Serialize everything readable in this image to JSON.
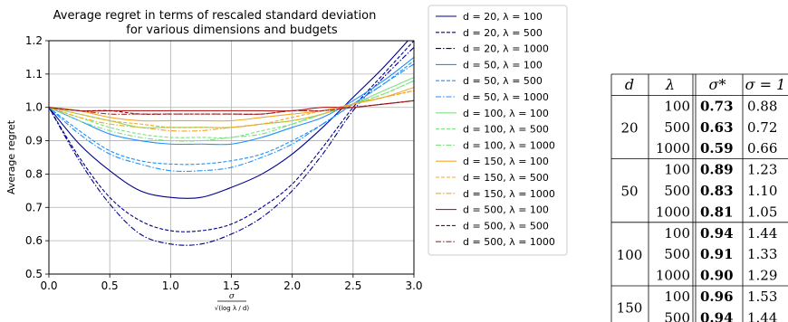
{
  "chart_data": {
    "type": "line",
    "title": "Average regret in terms of rescaled standard deviation",
    "subtitle": "for various dimensions and budgets",
    "ylabel": "Average regret",
    "xlabel_num": "σ",
    "xlabel_den": "√(log λ / d)",
    "xlim": [
      0,
      3
    ],
    "ylim": [
      0.5,
      1.2
    ],
    "xticks": [
      "0.0",
      "0.5",
      "1.0",
      "1.5",
      "2.0",
      "2.5",
      "3.0"
    ],
    "yticks": [
      "0.5",
      "0.6",
      "0.7",
      "0.8",
      "0.9",
      "1.0",
      "1.1",
      "1.2"
    ],
    "grid": true,
    "legend_position": "outside-right",
    "x": [
      0,
      0.25,
      0.5,
      0.75,
      1.0,
      1.25,
      1.5,
      1.75,
      2.0,
      2.25,
      2.5,
      2.75,
      3.0
    ],
    "series": [
      {
        "name": "d = 20, λ = 100",
        "color": "#00008b",
        "dash": "solid",
        "values": [
          1.0,
          0.89,
          0.81,
          0.75,
          0.73,
          0.73,
          0.76,
          0.8,
          0.86,
          0.94,
          1.03,
          1.12,
          1.22
        ]
      },
      {
        "name": "d = 20, λ = 500",
        "color": "#00008b",
        "dash": "dashed",
        "values": [
          1.0,
          0.85,
          0.73,
          0.66,
          0.63,
          0.63,
          0.65,
          0.7,
          0.77,
          0.88,
          1.0,
          1.1,
          1.2
        ]
      },
      {
        "name": "d = 20, λ = 1000",
        "color": "#00008b",
        "dash": "dashdot",
        "values": [
          1.0,
          0.84,
          0.71,
          0.62,
          0.59,
          0.59,
          0.62,
          0.67,
          0.75,
          0.86,
          0.99,
          1.09,
          1.18
        ]
      },
      {
        "name": "d = 50, λ = 100",
        "color": "#1e90ff",
        "dash": "solid",
        "values": [
          1.0,
          0.96,
          0.92,
          0.9,
          0.89,
          0.89,
          0.89,
          0.91,
          0.94,
          0.97,
          1.02,
          1.08,
          1.15
        ]
      },
      {
        "name": "d = 50, λ = 500",
        "color": "#1e90ff",
        "dash": "dashed",
        "values": [
          1.0,
          0.93,
          0.87,
          0.84,
          0.83,
          0.83,
          0.84,
          0.86,
          0.9,
          0.95,
          1.01,
          1.07,
          1.14
        ]
      },
      {
        "name": "d = 50, λ = 1000",
        "color": "#1e90ff",
        "dash": "dashdot",
        "values": [
          1.0,
          0.92,
          0.86,
          0.83,
          0.81,
          0.81,
          0.82,
          0.85,
          0.89,
          0.95,
          1.01,
          1.07,
          1.13
        ]
      },
      {
        "name": "d = 100, λ = 100",
        "color": "#7ee07e",
        "dash": "solid",
        "values": [
          1.0,
          0.98,
          0.96,
          0.94,
          0.94,
          0.94,
          0.94,
          0.95,
          0.96,
          0.98,
          1.01,
          1.05,
          1.09
        ]
      },
      {
        "name": "d = 100, λ = 500",
        "color": "#7ee07e",
        "dash": "dashed",
        "values": [
          1.0,
          0.97,
          0.94,
          0.92,
          0.91,
          0.91,
          0.91,
          0.93,
          0.95,
          0.98,
          1.01,
          1.04,
          1.08
        ]
      },
      {
        "name": "d = 100, λ = 1000",
        "color": "#7ee07e",
        "dash": "dashdot",
        "values": [
          1.0,
          0.96,
          0.93,
          0.91,
          0.9,
          0.9,
          0.91,
          0.92,
          0.95,
          0.98,
          1.01,
          1.04,
          1.08
        ]
      },
      {
        "name": "d = 150, λ = 100",
        "color": "#f5a623",
        "dash": "solid",
        "values": [
          1.0,
          0.99,
          0.97,
          0.96,
          0.96,
          0.96,
          0.96,
          0.97,
          0.98,
          0.99,
          1.01,
          1.03,
          1.06
        ]
      },
      {
        "name": "d = 150, λ = 500",
        "color": "#f5a623",
        "dash": "dashed",
        "values": [
          1.0,
          0.98,
          0.96,
          0.95,
          0.94,
          0.94,
          0.94,
          0.95,
          0.97,
          0.99,
          1.01,
          1.03,
          1.05
        ]
      },
      {
        "name": "d = 150, λ = 1000",
        "color": "#f5a623",
        "dash": "dashdot",
        "values": [
          1.0,
          0.97,
          0.95,
          0.94,
          0.93,
          0.93,
          0.94,
          0.95,
          0.96,
          0.98,
          1.01,
          1.03,
          1.05
        ]
      },
      {
        "name": "d = 500, λ = 100",
        "color": "#b22222",
        "dash": "solid",
        "values": [
          1.0,
          0.99,
          0.99,
          0.99,
          0.99,
          0.99,
          0.99,
          0.99,
          0.99,
          1.0,
          1.0,
          1.01,
          1.02
        ]
      },
      {
        "name": "d = 500, λ = 500",
        "color": "#8b0000",
        "dash": "dashed",
        "values": [
          1.0,
          0.99,
          0.99,
          0.98,
          0.98,
          0.98,
          0.98,
          0.98,
          0.99,
          0.99,
          1.0,
          1.01,
          1.02
        ]
      },
      {
        "name": "d = 500, λ = 1000",
        "color": "#a52a2a",
        "dash": "dashdot",
        "values": [
          1.0,
          0.99,
          0.98,
          0.98,
          0.98,
          0.98,
          0.98,
          0.98,
          0.99,
          0.99,
          1.0,
          1.01,
          1.02
        ]
      }
    ]
  },
  "table": {
    "headers": [
      "d",
      "λ",
      "σ*",
      "σ = 1"
    ],
    "groups": [
      {
        "d": "20",
        "rows": [
          [
            "100",
            "0.73",
            "0.88"
          ],
          [
            "500",
            "0.63",
            "0.72"
          ],
          [
            "1000",
            "0.59",
            "0.66"
          ]
        ]
      },
      {
        "d": "50",
        "rows": [
          [
            "100",
            "0.89",
            "1.23"
          ],
          [
            "500",
            "0.83",
            "1.10"
          ],
          [
            "1000",
            "0.81",
            "1.05"
          ]
        ]
      },
      {
        "d": "100",
        "rows": [
          [
            "100",
            "0.94",
            "1.44"
          ],
          [
            "500",
            "0.91",
            "1.33"
          ],
          [
            "1000",
            "0.90",
            "1.29"
          ]
        ]
      },
      {
        "d": "150",
        "rows": [
          [
            "100",
            "0.96",
            "1.53"
          ],
          [
            "500",
            "0.94",
            "1.44"
          ]
        ]
      }
    ]
  }
}
